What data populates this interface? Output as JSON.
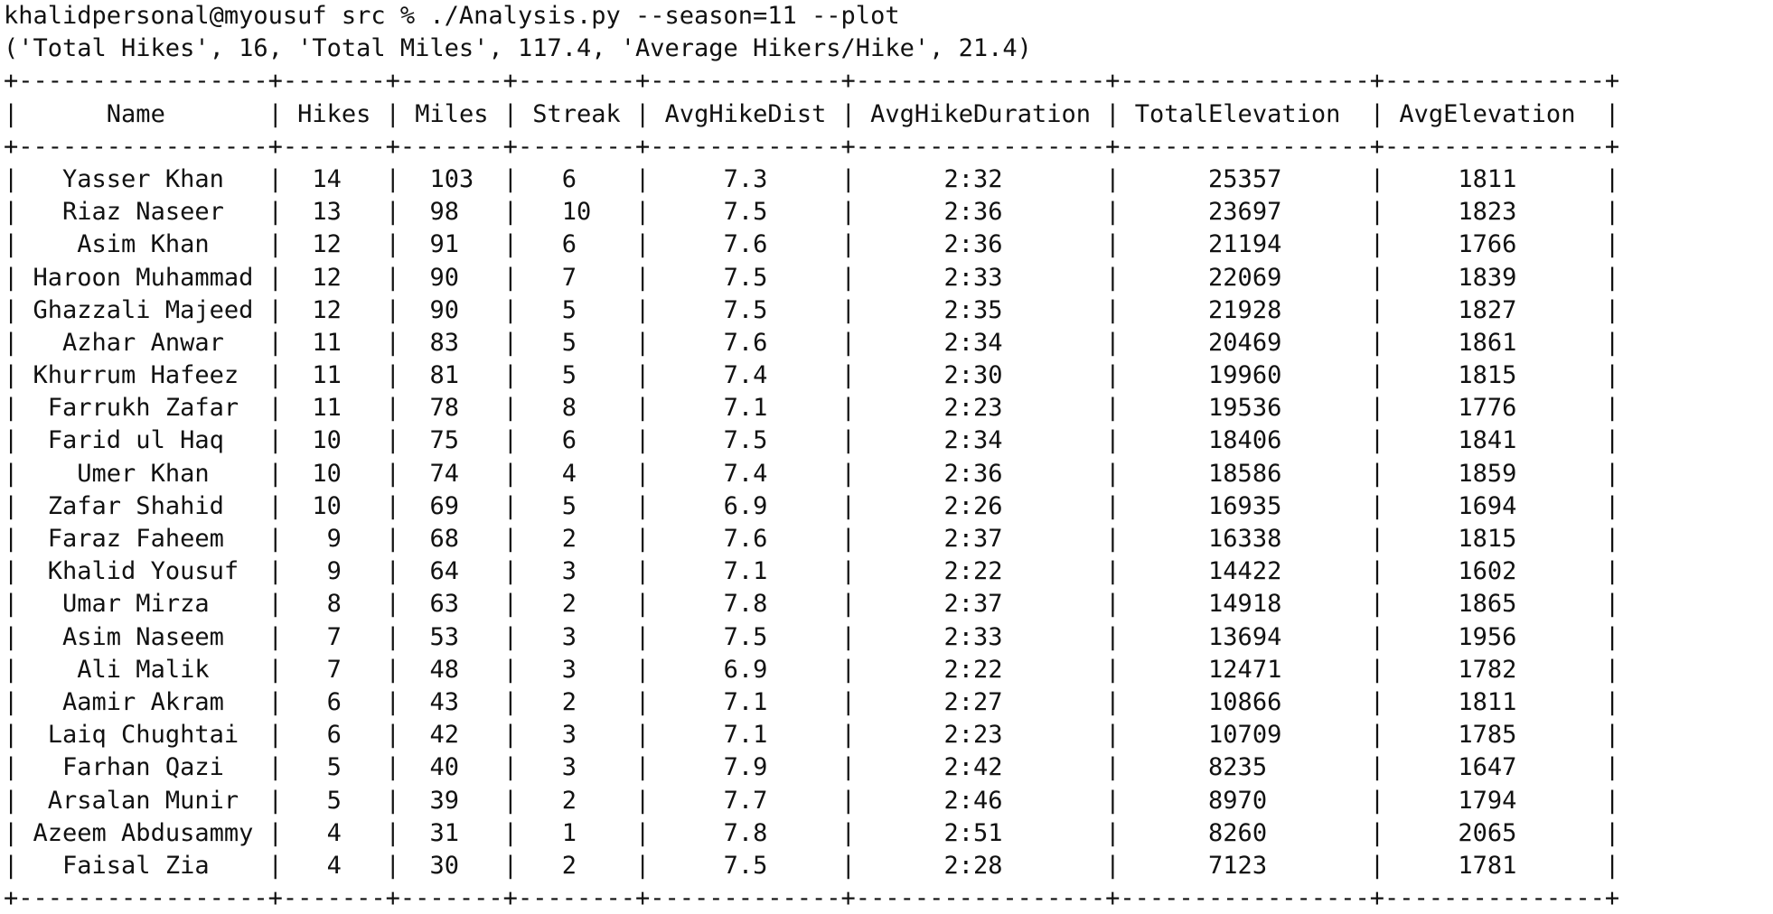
{
  "terminal": {
    "prompt": "khalidpersonal@myousuf src % ",
    "command": "./Analysis.py --season=11 --plot",
    "summary_output": "('Total Hikes', 16, 'Total Miles', 117.4, 'Average Hikers/Hike', 21.4)"
  },
  "table": {
    "columns": [
      "Name",
      "Hikes",
      "Miles",
      "Streak",
      "AvgHikeDist",
      "AvgHikeDuration",
      "TotalElevation",
      "AvgElevation"
    ],
    "rows": [
      [
        "Yasser Khan",
        "14",
        "103",
        "6",
        "7.3",
        "2:32",
        "25357",
        "1811"
      ],
      [
        "Riaz Naseer",
        "13",
        "98",
        "10",
        "7.5",
        "2:36",
        "23697",
        "1823"
      ],
      [
        "Asim Khan",
        "12",
        "91",
        "6",
        "7.6",
        "2:36",
        "21194",
        "1766"
      ],
      [
        "Haroon Muhammad",
        "12",
        "90",
        "7",
        "7.5",
        "2:33",
        "22069",
        "1839"
      ],
      [
        "Ghazzali Majeed",
        "12",
        "90",
        "5",
        "7.5",
        "2:35",
        "21928",
        "1827"
      ],
      [
        "Azhar Anwar",
        "11",
        "83",
        "5",
        "7.6",
        "2:34",
        "20469",
        "1861"
      ],
      [
        "Khurrum Hafeez",
        "11",
        "81",
        "5",
        "7.4",
        "2:30",
        "19960",
        "1815"
      ],
      [
        "Farrukh Zafar",
        "11",
        "78",
        "8",
        "7.1",
        "2:23",
        "19536",
        "1776"
      ],
      [
        "Farid ul Haq",
        "10",
        "75",
        "6",
        "7.5",
        "2:34",
        "18406",
        "1841"
      ],
      [
        "Umer Khan",
        "10",
        "74",
        "4",
        "7.4",
        "2:36",
        "18586",
        "1859"
      ],
      [
        "Zafar Shahid",
        "10",
        "69",
        "5",
        "6.9",
        "2:26",
        "16935",
        "1694"
      ],
      [
        "Faraz Faheem",
        "9",
        "68",
        "2",
        "7.6",
        "2:37",
        "16338",
        "1815"
      ],
      [
        "Khalid Yousuf",
        "9",
        "64",
        "3",
        "7.1",
        "2:22",
        "14422",
        "1602"
      ],
      [
        "Umar Mirza",
        "8",
        "63",
        "2",
        "7.8",
        "2:37",
        "14918",
        "1865"
      ],
      [
        "Asim Naseem",
        "7",
        "53",
        "3",
        "7.5",
        "2:33",
        "13694",
        "1956"
      ],
      [
        "Ali Malik",
        "7",
        "48",
        "3",
        "6.9",
        "2:22",
        "12471",
        "1782"
      ],
      [
        "Aamir Akram",
        "6",
        "43",
        "2",
        "7.1",
        "2:27",
        "10866",
        "1811"
      ],
      [
        "Laiq Chughtai",
        "6",
        "42",
        "3",
        "7.1",
        "2:23",
        "10709",
        "1785"
      ],
      [
        "Farhan Qazi",
        "5",
        "40",
        "3",
        "7.9",
        "2:42",
        "8235",
        "1647"
      ],
      [
        "Arsalan Munir",
        "5",
        "39",
        "2",
        "7.7",
        "2:46",
        "8970",
        "1794"
      ],
      [
        "Azeem Abdusammy",
        "4",
        "31",
        "1",
        "7.8",
        "2:51",
        "8260",
        "2065"
      ],
      [
        "Faisal Zia",
        "4",
        "30",
        "2",
        "7.5",
        "2:28",
        "7123",
        "1781"
      ]
    ]
  }
}
